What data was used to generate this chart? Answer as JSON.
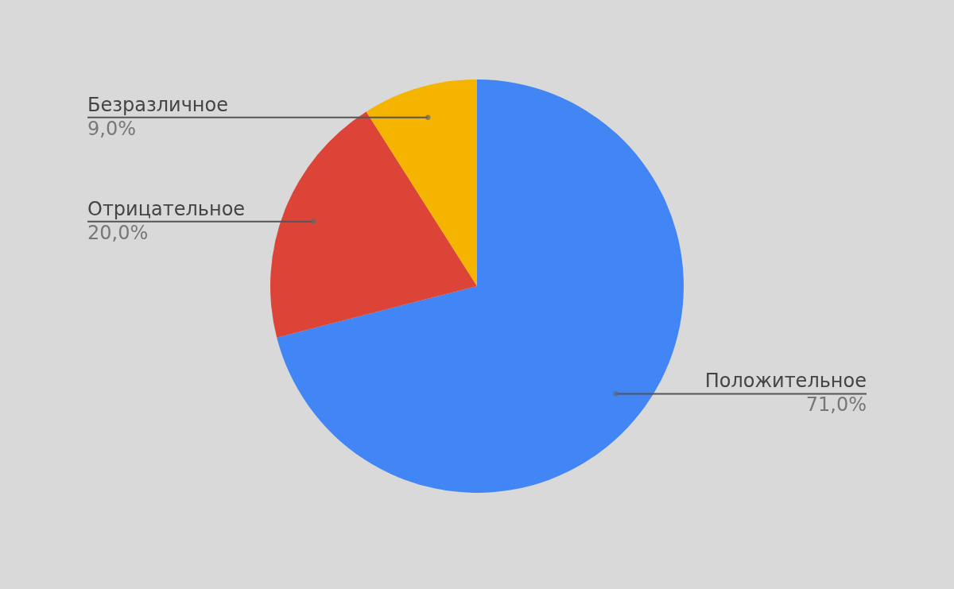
{
  "chart_data": {
    "type": "pie",
    "categories": [
      "Положительное",
      "Отрицательное",
      "Безразличное"
    ],
    "values": [
      71,
      20,
      9
    ],
    "colors": [
      "#4285f4",
      "#db4437",
      "#f4b400"
    ],
    "value_labels": [
      "71,0%",
      "20,0%",
      "9,0%"
    ]
  }
}
